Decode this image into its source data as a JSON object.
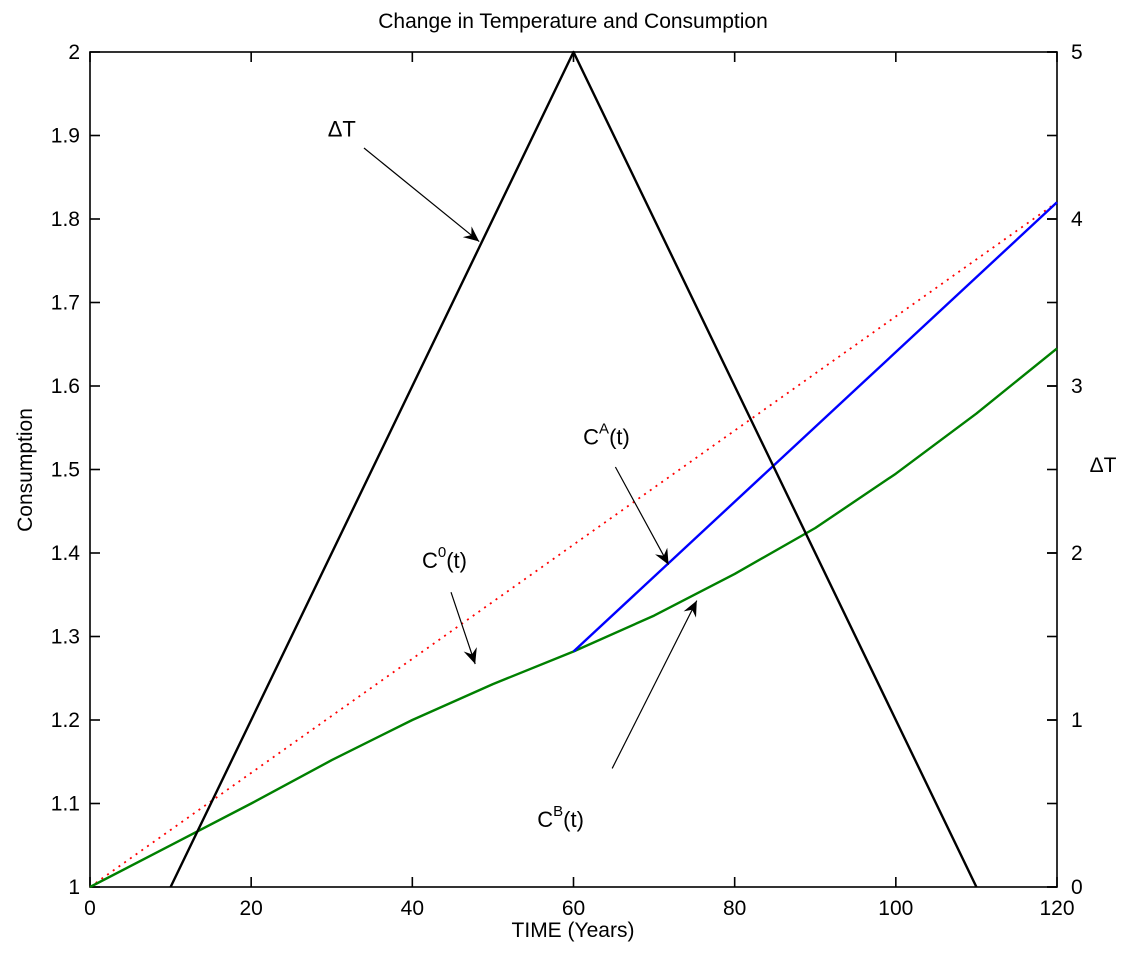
{
  "chart_data": {
    "type": "line",
    "title": "Change in Temperature and Consumption",
    "xlabel": "TIME (Years)",
    "ylabel": "Consumption",
    "y2label": "ΔT",
    "xlim": [
      0,
      120
    ],
    "ylim": [
      1,
      2
    ],
    "y2lim": [
      0,
      5
    ],
    "x_ticks": [
      0,
      20,
      40,
      60,
      80,
      100,
      120
    ],
    "y_ticks": [
      1,
      1.1,
      1.2,
      1.3,
      1.4,
      1.5,
      1.6,
      1.7,
      1.8,
      1.9,
      2
    ],
    "y2_ticks": [
      0,
      1,
      2,
      3,
      4,
      5
    ],
    "grid": false,
    "colors": {
      "delta_t": "#000000",
      "c0": "#ff0000",
      "ca": "#0000ff",
      "cb": "#008000"
    },
    "series": [
      {
        "name": "ΔT",
        "axis": "right",
        "style": "solid",
        "color": "#000000",
        "x": [
          10,
          60,
          110
        ],
        "y": [
          0,
          5,
          0
        ]
      },
      {
        "name": "C0(t)",
        "axis": "left",
        "style": "dotted",
        "color": "#ff0000",
        "x": [
          0,
          60,
          120
        ],
        "y": [
          1,
          1.41,
          1.82
        ]
      },
      {
        "name": "CA(t)",
        "axis": "left",
        "style": "solid",
        "color": "#0000ff",
        "x": [
          60,
          120
        ],
        "y": [
          1.282,
          1.82
        ]
      },
      {
        "name": "CB(t)",
        "axis": "left",
        "style": "solid",
        "color": "#008000",
        "x": [
          0,
          10,
          20,
          30,
          40,
          50,
          60,
          70,
          80,
          90,
          100,
          110,
          120
        ],
        "y": [
          1,
          1.05,
          1.1,
          1.152,
          1.2,
          1.243,
          1.282,
          1.325,
          1.375,
          1.43,
          1.495,
          1.567,
          1.645
        ]
      }
    ],
    "annotations": [
      {
        "base": "ΔT",
        "sup": "",
        "tail": "",
        "text_x": 29.5,
        "text_y": 1.899,
        "tail_x": 34,
        "tail_y": 1.885,
        "head_x": 48.3,
        "head_y": 1.773
      },
      {
        "base": "C",
        "sup": "0",
        "tail": "(t)",
        "text_x": 41.2,
        "text_y": 1.382,
        "tail_x": 44.8,
        "tail_y": 1.353,
        "head_x": 47.8,
        "head_y": 1.267
      },
      {
        "base": "C",
        "sup": "A",
        "tail": "(t)",
        "text_x": 61.2,
        "text_y": 1.53,
        "tail_x": 65.2,
        "tail_y": 1.503,
        "head_x": 71.8,
        "head_y": 1.386
      },
      {
        "base": "C",
        "sup": "B",
        "tail": "(t)",
        "text_x": 55.5,
        "text_y": 1.072,
        "tail_x": 64.8,
        "tail_y": 1.142,
        "head_x": 75.3,
        "head_y": 1.343
      }
    ]
  }
}
